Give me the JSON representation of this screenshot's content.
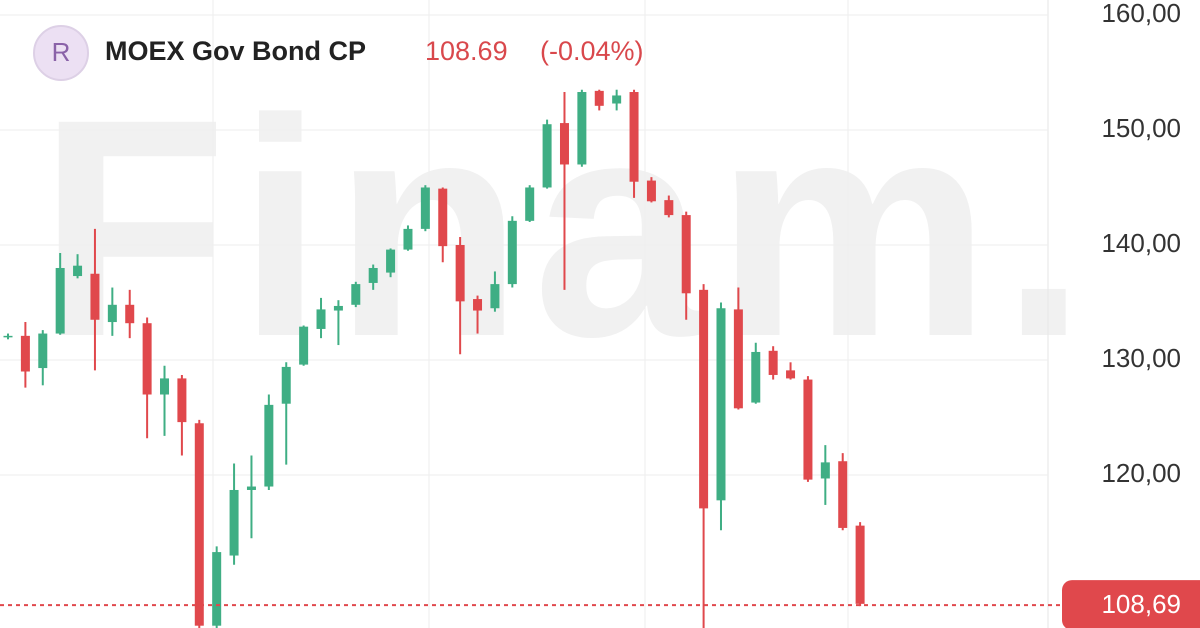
{
  "header": {
    "avatar": "R",
    "title": "MOEX Gov Bond CP",
    "price": "108.69",
    "change": "(-0.04%)"
  },
  "watermark": "Finam.",
  "chart_data": {
    "type": "candlestick",
    "up_color": "#3fae84",
    "down_color": "#e0484c",
    "open": [
      132.0,
      132.1,
      129.3,
      132.3,
      137.3,
      137.5,
      133.3,
      134.8,
      133.2,
      127.0,
      128.4,
      124.5,
      106.9,
      113.0,
      118.7,
      119.0,
      126.2,
      129.6,
      132.7,
      134.3,
      134.8,
      136.7,
      137.6,
      139.6,
      141.4,
      144.9,
      140.0,
      135.3,
      134.5,
      136.6,
      142.1,
      145.0,
      150.6,
      147.0,
      153.4,
      152.3,
      153.3,
      145.6,
      143.9,
      142.6,
      136.1,
      117.8,
      134.4,
      126.3,
      130.8,
      129.1,
      128.3,
      119.7,
      121.2,
      115.6
    ],
    "high": [
      132.3,
      133.3,
      132.6,
      139.3,
      139.2,
      141.4,
      136.3,
      136.1,
      133.7,
      129.5,
      128.7,
      124.8,
      113.8,
      121.0,
      121.7,
      127.0,
      129.8,
      133.0,
      135.4,
      135.2,
      136.8,
      138.3,
      139.7,
      141.7,
      145.2,
      145.0,
      140.7,
      135.6,
      137.7,
      142.5,
      145.2,
      150.9,
      153.3,
      153.5,
      153.5,
      153.5,
      153.5,
      145.9,
      144.3,
      142.9,
      136.6,
      135.0,
      136.3,
      131.5,
      131.2,
      129.8,
      128.6,
      122.6,
      121.9,
      115.9
    ],
    "low": [
      131.8,
      127.6,
      127.8,
      132.2,
      137.1,
      129.1,
      132.1,
      131.9,
      123.2,
      123.4,
      121.7,
      106.0,
      106.0,
      112.2,
      114.5,
      118.7,
      120.9,
      129.5,
      131.9,
      131.3,
      134.6,
      136.1,
      137.2,
      139.5,
      141.2,
      138.5,
      130.5,
      132.3,
      134.2,
      136.3,
      142.0,
      144.9,
      136.1,
      146.8,
      151.7,
      151.7,
      144.1,
      143.7,
      142.4,
      133.5,
      106.0,
      115.2,
      125.7,
      126.2,
      128.3,
      128.3,
      119.4,
      117.4,
      115.2,
      108.6
    ],
    "close": [
      132.1,
      129.0,
      132.3,
      138.0,
      138.2,
      133.5,
      134.8,
      133.2,
      127.0,
      128.4,
      124.6,
      106.9,
      113.3,
      118.7,
      119.0,
      126.1,
      129.4,
      132.9,
      134.4,
      134.7,
      136.6,
      138.0,
      139.6,
      141.4,
      145.0,
      139.9,
      135.1,
      134.3,
      136.6,
      142.1,
      145.0,
      150.5,
      147.0,
      153.3,
      152.1,
      153.0,
      145.5,
      143.8,
      142.6,
      135.8,
      117.1,
      134.5,
      125.8,
      130.7,
      128.7,
      128.4,
      119.6,
      121.1,
      115.4,
      108.8
    ],
    "last_value": 108.69,
    "last_label": "108,69",
    "ylim": [
      106.7,
      161.3
    ],
    "yticks": [
      {
        "value": 120,
        "label": "120,00"
      },
      {
        "value": 130,
        "label": "130,00"
      },
      {
        "value": 140,
        "label": "140,00"
      },
      {
        "value": 150,
        "label": "150,00"
      },
      {
        "value": 160,
        "label": "160,00"
      }
    ],
    "grid": true
  }
}
